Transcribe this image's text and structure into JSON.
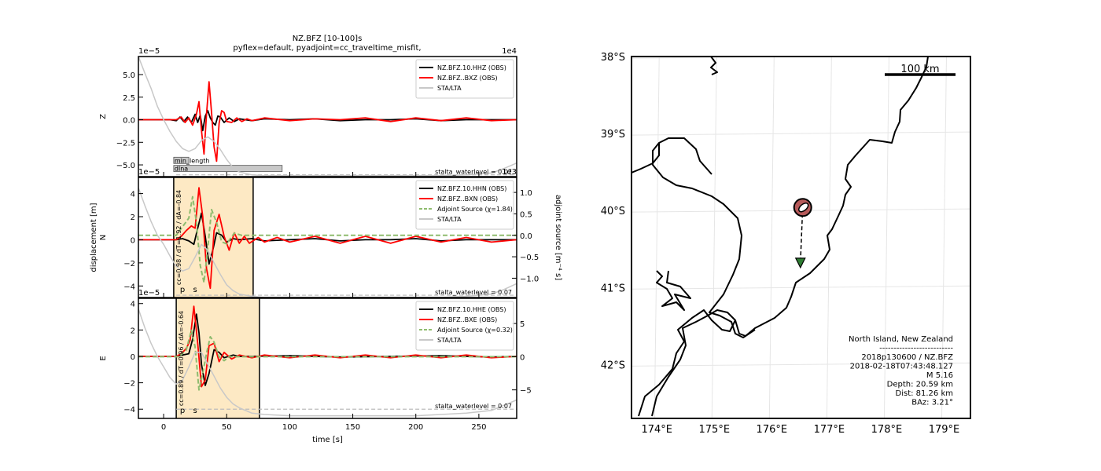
{
  "chart_data": [
    {
      "type": "line",
      "title": "NZ.BFZ [10-100]s",
      "subtitle": "pyflex=default,  pyadjoint=cc_traveltime_misfit,",
      "ylabel": "Z",
      "offset_label": "1e−5",
      "right_offset_label": "1e4",
      "xlim": [
        -20,
        280
      ],
      "ylim": [
        -6.3,
        7.0
      ],
      "yticks": [
        -5.0,
        -2.5,
        0.0,
        2.5,
        5.0
      ],
      "ytick_labels": [
        "−5.0",
        "−2.5",
        "0.0",
        "2.5",
        "5.0"
      ],
      "waterlevel_label": "stalta_waterlevel = 0.07",
      "waterlevel_y": -6.1,
      "legend_position": "top-right",
      "legend": [
        "NZ.BFZ.10.HHZ (OBS)",
        "NZ.BFZ..BXZ (OBS)",
        "STA/LTA"
      ],
      "rejections": [
        {
          "label": "min_length",
          "x0": 8,
          "x1": 20,
          "level": -4.5
        },
        {
          "label": "dlna",
          "x0": 8,
          "x1": 94,
          "level": -5.4
        }
      ],
      "series": [
        {
          "name": "NZ.BFZ.10.HHZ (OBS)",
          "color": "#000000",
          "x": [
            -20,
            0,
            5,
            10,
            13,
            16,
            19,
            22,
            25,
            27,
            29,
            31,
            33,
            35,
            37,
            39,
            41,
            43,
            45,
            48,
            52,
            56,
            60,
            70,
            80,
            100,
            120,
            140,
            160,
            180,
            200,
            220,
            240,
            260,
            280
          ],
          "y": [
            0,
            0,
            0,
            -0.1,
            0.3,
            -0.2,
            0.3,
            -0.3,
            0.6,
            -0.3,
            0.5,
            -1.2,
            0.4,
            1.0,
            0.2,
            -0.3,
            -0.6,
            0.4,
            0.3,
            -0.3,
            0.2,
            -0.2,
            0.1,
            -0.1,
            0.1,
            0,
            0.1,
            -0.1,
            0,
            0,
            0.1,
            -0.1,
            0,
            0,
            0
          ]
        },
        {
          "name": "NZ.BFZ..BXZ (OBS)",
          "color": "#ff0000",
          "x": [
            -20,
            0,
            10,
            14,
            17,
            20,
            23,
            26,
            28,
            30,
            32,
            34,
            36,
            38,
            40,
            42,
            44,
            46,
            48,
            50,
            54,
            58,
            62,
            66,
            70,
            80,
            100,
            120,
            140,
            160,
            180,
            200,
            220,
            240,
            260,
            280
          ],
          "y": [
            0,
            0,
            0,
            0.3,
            -0.3,
            0.2,
            -0.6,
            0.6,
            2.0,
            -1.2,
            -3.8,
            0.6,
            4.2,
            0.8,
            -3.0,
            -4.6,
            -0.4,
            1.0,
            0.8,
            -0.2,
            -0.3,
            0.2,
            -0.2,
            0.1,
            -0.1,
            0.2,
            -0.1,
            0.1,
            0,
            0.2,
            -0.2,
            0.2,
            -0.1,
            0.2,
            -0.1,
            0
          ]
        },
        {
          "name": "STA/LTA",
          "color": "#c8c8c8",
          "x": [
            -20,
            -15,
            -10,
            -5,
            0,
            5,
            10,
            15,
            20,
            25,
            30,
            35,
            40,
            45,
            50,
            55,
            60,
            70,
            80,
            100,
            120,
            140,
            160,
            180,
            200,
            220,
            240,
            260,
            270,
            280
          ],
          "y": [
            7.0,
            5.2,
            3.5,
            1.5,
            0.0,
            -1.3,
            -2.4,
            -3.2,
            -3.5,
            -3.2,
            -2.3,
            -1.9,
            -2.4,
            -3.3,
            -4.4,
            -5.3,
            -5.8,
            -6.1,
            -6.2,
            -6.2,
            -6.2,
            -6.2,
            -6.2,
            -6.2,
            -6.2,
            -6.2,
            -6.1,
            -5.9,
            -5.4,
            -4.8
          ]
        }
      ]
    },
    {
      "type": "line",
      "ylabel": "N",
      "shared_ylabel": "displacement [m]",
      "right_ylabel": "adjoint source [m⁻⁴ s]",
      "offset_label": "1e−5",
      "right_offset_label": "1e3",
      "xlim": [
        -20,
        280
      ],
      "ylim": [
        -5.0,
        5.4
      ],
      "right_ylim": [
        -1.45,
        1.35
      ],
      "yticks": [
        -4,
        -2,
        0,
        2,
        4
      ],
      "ytick_labels": [
        "−4",
        "−2",
        "0",
        "2",
        "4"
      ],
      "right_yticks": [
        -1.0,
        -0.5,
        0.0,
        0.5,
        1.0
      ],
      "right_ytick_labels": [
        "−1.0",
        "−0.5",
        "0.0",
        "0.5",
        "1.0"
      ],
      "waterlevel_label": "stalta_waterlevel = 0.07",
      "waterlevel_y": -4.8,
      "legend_position": "top-right",
      "legend": [
        "NZ.BFZ.10.HHN (OBS)",
        "NZ.BFZ..BXN (OBS)",
        "Adjoint Source (χ=1.84)",
        "STA/LTA"
      ],
      "window": {
        "x0": 8,
        "x1": 71,
        "label": "cc=0.98 / dT=1.92 / dA=-0.84"
      },
      "phases": [
        {
          "label": "p",
          "x": 15
        },
        {
          "label": "s",
          "x": 25
        }
      ],
      "series": [
        {
          "name": "NZ.BFZ.10.HHN (OBS)",
          "color": "#000000",
          "x": [
            -20,
            0,
            10,
            15,
            20,
            24,
            27,
            30,
            33,
            36,
            39,
            42,
            46,
            50,
            55,
            60,
            70,
            80,
            100,
            120,
            140,
            160,
            180,
            200,
            220,
            240,
            260,
            280
          ],
          "y": [
            0,
            0,
            0,
            0.1,
            -0.1,
            -0.4,
            1.0,
            2.3,
            0.3,
            -2.1,
            -0.9,
            0.6,
            0.4,
            -0.2,
            0.1,
            0,
            0.1,
            -0.1,
            0,
            0.1,
            -0.1,
            0,
            0,
            0.1,
            -0.1,
            0,
            0,
            0
          ]
        },
        {
          "name": "NZ.BFZ..BXN (OBS)",
          "color": "#ff0000",
          "x": [
            -20,
            0,
            10,
            14,
            18,
            22,
            25,
            28,
            31,
            34,
            37,
            40,
            44,
            48,
            52,
            56,
            60,
            64,
            68,
            75,
            80,
            90,
            100,
            120,
            140,
            160,
            180,
            200,
            220,
            240,
            260,
            280
          ],
          "y": [
            0,
            0,
            0,
            0.3,
            0.8,
            1.2,
            1.0,
            4.5,
            2.0,
            -2.5,
            -4.2,
            0.8,
            2.2,
            0.3,
            -0.9,
            0.6,
            -0.3,
            0.3,
            -0.3,
            0.2,
            -0.2,
            0.2,
            -0.2,
            0.3,
            -0.3,
            0.3,
            -0.3,
            0.3,
            -0.2,
            0.2,
            -0.2,
            0
          ]
        },
        {
          "name": "Adjoint Source (χ=1.84)",
          "color": "#8fbc6f",
          "axis": "right",
          "x": [
            -20,
            10,
            20,
            23,
            26,
            29,
            32,
            35,
            38,
            42,
            46,
            50,
            56,
            62,
            70,
            280
          ],
          "y": [
            0,
            0,
            0.4,
            0.9,
            0.3,
            -0.7,
            -1.1,
            -0.3,
            0.6,
            0.3,
            -0.15,
            -0.2,
            0.05,
            0,
            0,
            0
          ]
        },
        {
          "name": "STA/LTA",
          "color": "#c8c8c8",
          "x": [
            -20,
            -15,
            -10,
            -5,
            0,
            5,
            10,
            15,
            20,
            25,
            30,
            35,
            40,
            45,
            50,
            55,
            60,
            70,
            80,
            100,
            120,
            140,
            160,
            180,
            200,
            220,
            240,
            260,
            270,
            280
          ],
          "y": [
            4.5,
            3.0,
            1.6,
            0.4,
            -0.4,
            -1.4,
            -2.3,
            -2.7,
            -2.5,
            -1.5,
            -0.4,
            -0.9,
            -2.0,
            -3.0,
            -3.9,
            -4.4,
            -4.7,
            -4.9,
            -5.0,
            -5.0,
            -5.0,
            -5.0,
            -5.0,
            -5.0,
            -5.0,
            -5.0,
            -4.9,
            -4.7,
            -4.3,
            -3.8
          ]
        }
      ]
    },
    {
      "type": "line",
      "ylabel": "E",
      "xlabel": "time [s]",
      "offset_label": "1e−5",
      "xlim": [
        -20,
        280
      ],
      "ylim": [
        -4.7,
        4.4
      ],
      "right_ylim": [
        -9.3,
        8.8
      ],
      "xticks": [
        0,
        50,
        100,
        150,
        200,
        250
      ],
      "xtick_labels": [
        "0",
        "50",
        "100",
        "150",
        "200",
        "250"
      ],
      "yticks": [
        -4,
        -2,
        0,
        2,
        4
      ],
      "ytick_labels": [
        "−4",
        "−2",
        "0",
        "2",
        "4"
      ],
      "right_yticks": [
        -5,
        0,
        5
      ],
      "right_ytick_labels": [
        "−5",
        "0",
        "5"
      ],
      "waterlevel_label": "stalta_waterlevel = 0.07",
      "waterlevel_y": -4.0,
      "legend_position": "top-right",
      "legend": [
        "NZ.BFZ.10.HHE (OBS)",
        "NZ.BFZ..BXE (OBS)",
        "Adjoint Source (χ=0.32)",
        "STA/LTA"
      ],
      "window": {
        "x0": 10,
        "x1": 76,
        "label": "cc=0.89 / dT=0.96 / dA=-0.64"
      },
      "phases": [
        {
          "label": "p",
          "x": 15
        },
        {
          "label": "s",
          "x": 25
        }
      ],
      "series": [
        {
          "name": "NZ.BFZ.10.HHE (OBS)",
          "color": "#000000",
          "x": [
            -20,
            0,
            10,
            15,
            20,
            23,
            26,
            28,
            30,
            33,
            36,
            40,
            44,
            48,
            55,
            60,
            70,
            100,
            140,
            180,
            220,
            260,
            280
          ],
          "y": [
            0,
            0,
            0,
            0.1,
            0.2,
            1.3,
            3.2,
            1.8,
            -0.6,
            -2.2,
            -1.3,
            0.5,
            0.3,
            -0.1,
            0.1,
            0,
            0,
            0.05,
            -0.05,
            0,
            0.05,
            -0.05,
            0
          ]
        },
        {
          "name": "NZ.BFZ..BXE (OBS)",
          "color": "#ff0000",
          "x": [
            -20,
            0,
            10,
            14,
            18,
            21,
            24,
            27,
            30,
            33,
            36,
            40,
            44,
            48,
            54,
            60,
            70,
            80,
            100,
            120,
            140,
            160,
            180,
            200,
            220,
            240,
            260,
            280
          ],
          "y": [
            0,
            0,
            0,
            0.2,
            0.6,
            1.2,
            3.8,
            1.0,
            -2.3,
            -1.8,
            0.8,
            1.0,
            -0.4,
            0.3,
            -0.2,
            0.1,
            -0.1,
            0.1,
            -0.1,
            0.1,
            -0.1,
            0.1,
            -0.1,
            0.1,
            -0.1,
            0.1,
            -0.1,
            0
          ]
        },
        {
          "name": "Adjoint Source (χ=0.32)",
          "color": "#8fbc6f",
          "axis": "right",
          "x": [
            -20,
            12,
            18,
            22,
            25,
            28,
            31,
            34,
            37,
            40,
            44,
            48,
            52,
            58,
            66,
            280
          ],
          "y": [
            0,
            0,
            1.0,
            4.0,
            1.5,
            -5.0,
            -2.5,
            0.5,
            3.0,
            2.2,
            0,
            -0.6,
            0,
            0,
            0,
            0
          ]
        },
        {
          "name": "STA/LTA",
          "color": "#c8c8c8",
          "x": [
            -20,
            -15,
            -10,
            -5,
            0,
            5,
            10,
            15,
            20,
            25,
            30,
            35,
            40,
            45,
            50,
            55,
            60,
            70,
            80,
            100,
            120,
            140,
            160,
            180,
            200,
            220,
            240,
            260,
            270,
            280
          ],
          "y": [
            3.6,
            2.2,
            1.0,
            0.0,
            -0.8,
            -1.6,
            -2.1,
            -1.8,
            -0.8,
            0.3,
            0.3,
            -0.6,
            -1.5,
            -2.4,
            -3.1,
            -3.6,
            -3.9,
            -4.3,
            -4.4,
            -4.5,
            -4.5,
            -4.5,
            -4.5,
            -4.5,
            -4.5,
            -4.4,
            -4.3,
            -4.1,
            -3.7,
            -3.3
          ]
        }
      ]
    },
    {
      "type": "map",
      "lon_range": [
        173.6,
        179.5
      ],
      "lat_range": [
        -42.7,
        -38.0
      ],
      "xtick_labels": [
        "174°E",
        "175°E",
        "176°E",
        "177°E",
        "178°E",
        "179°E"
      ],
      "xticks": [
        174,
        175,
        176,
        177,
        178,
        179
      ],
      "ytick_labels": [
        "38°S",
        "39°S",
        "40°S",
        "41°S",
        "42°S"
      ],
      "yticks": [
        -38,
        -39,
        -40,
        -41,
        -42
      ],
      "grid": true,
      "scalebar_label": "100 km",
      "event": {
        "lon": 176.58,
        "lat": -39.96,
        "color": "#b65a5a"
      },
      "station": {
        "lon": 176.54,
        "lat": -40.68,
        "color": "#2e7d32"
      },
      "info_lines": [
        "North Island, New Zealand",
        "--------------------------",
        "2018p130600 / NZ.BFZ",
        "2018-02-18T07:43:48.127",
        "M 5.16",
        "Depth: 20.59 km",
        "Dist: 81.26 km",
        "BAz: 3.21°"
      ]
    }
  ]
}
